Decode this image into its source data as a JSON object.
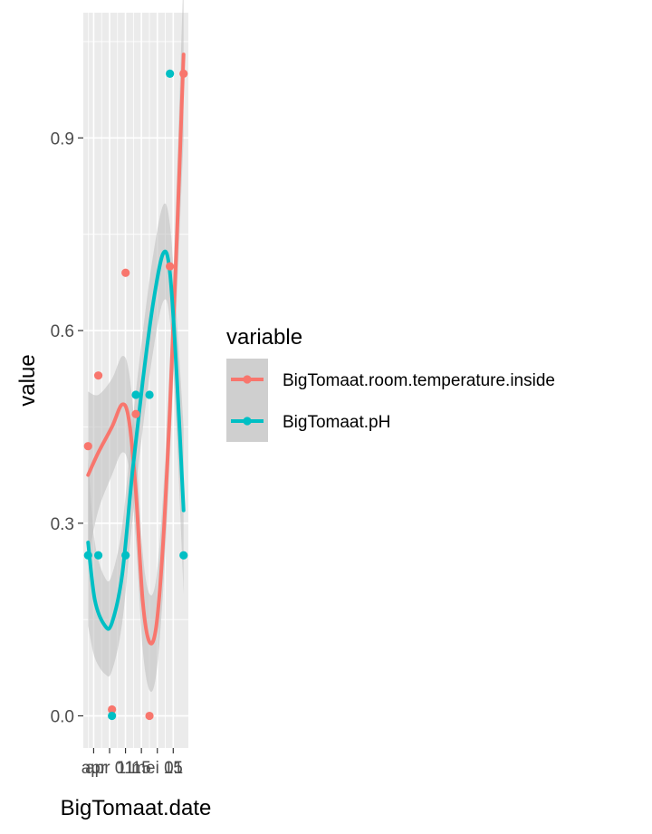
{
  "chart_data": {
    "type": "scatter",
    "title": "",
    "xlabel": "BigTomaat.date",
    "ylabel": "value",
    "x_tick_labels": [
      "apr",
      "apr 01",
      "11",
      "15",
      "mei 01",
      "15"
    ],
    "ylim": [
      -0.05,
      1.095
    ],
    "y_ticks": [
      0.0,
      0.3,
      0.6,
      0.9
    ],
    "y_tick_labels": [
      "0.0",
      "0.3",
      "0.6",
      "0.9"
    ],
    "grid": true,
    "smoothing": "loess with grey confidence band",
    "legend": {
      "title": "variable",
      "position": "right"
    },
    "series": [
      {
        "name": "BigTomaat.room.temperature.inside",
        "color": "#F8766D",
        "points": [
          {
            "x": "2017-03-28",
            "y": 0.42
          },
          {
            "x": "2017-03-31",
            "y": 0.53
          },
          {
            "x": "2017-04-04",
            "y": 0.01
          },
          {
            "x": "2017-04-08",
            "y": 0.69
          },
          {
            "x": "2017-04-11",
            "y": 0.47
          },
          {
            "x": "2017-04-15",
            "y": 0.0
          },
          {
            "x": "2017-04-21",
            "y": 0.7
          },
          {
            "x": "2017-04-25",
            "y": 1.0
          }
        ],
        "smooth": [
          {
            "x": "2017-03-28",
            "y": 0.375
          },
          {
            "x": "2017-03-31",
            "y": 0.41
          },
          {
            "x": "2017-04-04",
            "y": 0.45
          },
          {
            "x": "2017-04-07",
            "y": 0.485
          },
          {
            "x": "2017-04-09",
            "y": 0.46
          },
          {
            "x": "2017-04-11",
            "y": 0.35
          },
          {
            "x": "2017-04-13",
            "y": 0.18
          },
          {
            "x": "2017-04-15",
            "y": 0.115
          },
          {
            "x": "2017-04-17",
            "y": 0.14
          },
          {
            "x": "2017-04-19",
            "y": 0.27
          },
          {
            "x": "2017-04-21",
            "y": 0.48
          },
          {
            "x": "2017-04-23",
            "y": 0.74
          },
          {
            "x": "2017-04-25",
            "y": 1.03
          }
        ]
      },
      {
        "name": "BigTomaat.pH",
        "color": "#00BFC4",
        "points": [
          {
            "x": "2017-03-28",
            "y": 0.25
          },
          {
            "x": "2017-03-31",
            "y": 0.25
          },
          {
            "x": "2017-04-04",
            "y": 0.0
          },
          {
            "x": "2017-04-08",
            "y": 0.25
          },
          {
            "x": "2017-04-11",
            "y": 0.5
          },
          {
            "x": "2017-04-15",
            "y": 0.5
          },
          {
            "x": "2017-04-21",
            "y": 1.0
          },
          {
            "x": "2017-04-25",
            "y": 0.25
          }
        ],
        "smooth": [
          {
            "x": "2017-03-28",
            "y": 0.27
          },
          {
            "x": "2017-03-30",
            "y": 0.18
          },
          {
            "x": "2017-04-02",
            "y": 0.14
          },
          {
            "x": "2017-04-04",
            "y": 0.145
          },
          {
            "x": "2017-04-07",
            "y": 0.22
          },
          {
            "x": "2017-04-10",
            "y": 0.38
          },
          {
            "x": "2017-04-13",
            "y": 0.52
          },
          {
            "x": "2017-04-16",
            "y": 0.64
          },
          {
            "x": "2017-04-19",
            "y": 0.72
          },
          {
            "x": "2017-04-21",
            "y": 0.69
          },
          {
            "x": "2017-04-23",
            "y": 0.53
          },
          {
            "x": "2017-04-25",
            "y": 0.32
          }
        ]
      }
    ],
    "band_color": "#bdbdbd",
    "panel_background": "#ebebeb",
    "legend_key_background": "#cfcfcf"
  }
}
